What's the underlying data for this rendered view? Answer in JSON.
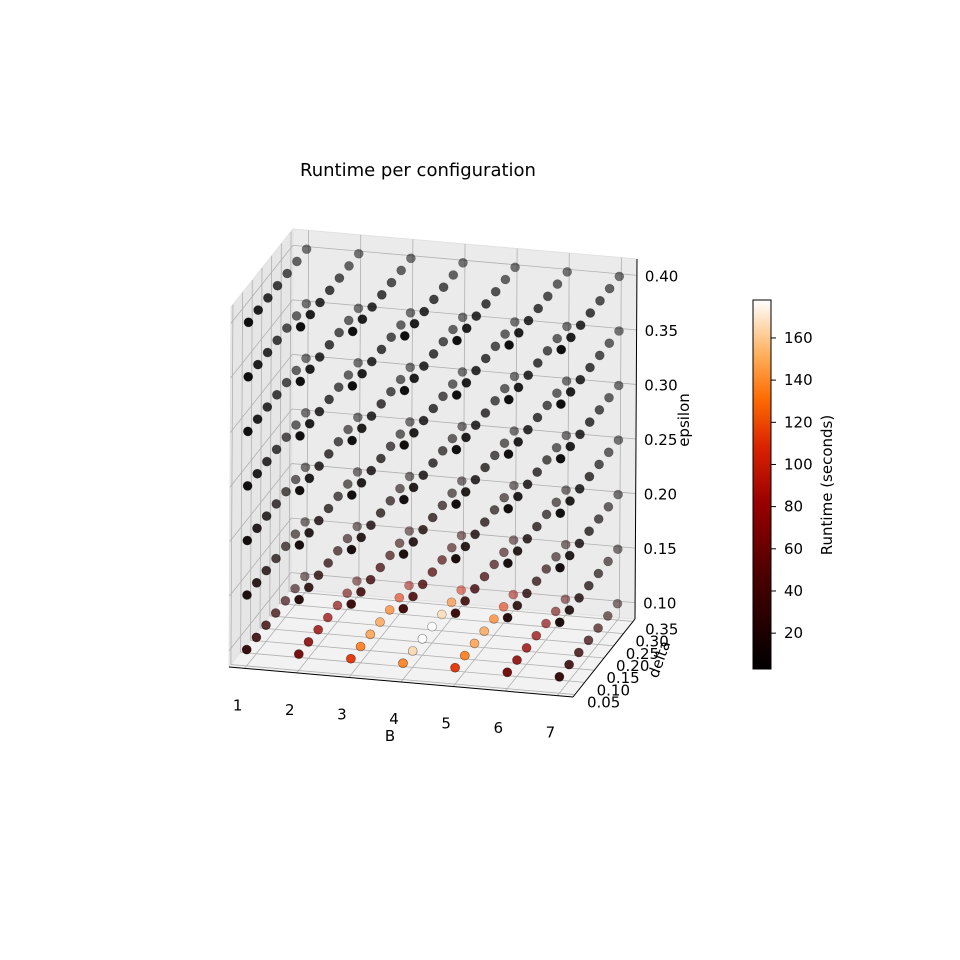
{
  "chart_data": {
    "type": "scatter",
    "title": "Runtime per configuration",
    "axes": {
      "x": {
        "label": "B",
        "ticks": [
          1,
          2,
          3,
          4,
          5,
          6,
          7
        ],
        "tick_labels": [
          "1",
          "2",
          "3",
          "4",
          "5",
          "6",
          "7"
        ],
        "range": [
          0.7,
          7.3
        ]
      },
      "y": {
        "label": "delta",
        "ticks": [
          0.05,
          0.1,
          0.15,
          0.2,
          0.25,
          0.3,
          0.35
        ],
        "tick_labels": [
          "0.05",
          "0.10",
          "0.15",
          "0.20",
          "0.25",
          "0.30",
          "0.35"
        ],
        "range": [
          0.04,
          0.36
        ]
      },
      "z": {
        "label": "epsilon",
        "ticks": [
          0.1,
          0.15,
          0.2,
          0.25,
          0.3,
          0.35,
          0.4
        ],
        "tick_labels": [
          "0.10",
          "0.15",
          "0.20",
          "0.25",
          "0.30",
          "0.35",
          "0.40"
        ],
        "range": [
          0.085,
          0.415
        ]
      }
    },
    "grid": true,
    "colormap": "gist_heat",
    "colorbar": {
      "label": "Runtime (seconds)",
      "ticks": [
        20,
        40,
        60,
        80,
        100,
        120,
        140,
        160
      ],
      "tick_labels": [
        "20",
        "40",
        "60",
        "80",
        "100",
        "120",
        "140",
        "160"
      ],
      "range": [
        3,
        178
      ]
    },
    "grid_values": {
      "B": [
        1,
        2,
        3,
        4,
        5,
        6,
        7
      ],
      "delta": [
        0.05,
        0.1,
        0.15,
        0.2,
        0.25,
        0.3,
        0.35
      ],
      "epsilon": [
        0.1,
        0.15,
        0.2,
        0.25,
        0.3,
        0.35,
        0.4
      ]
    },
    "runtime_model": "runtime is highest for small epsilon (about 130-178 s at epsilon 0.10 for B 3-5) and drops below about 20 s for epsilon >= 0.25"
  }
}
